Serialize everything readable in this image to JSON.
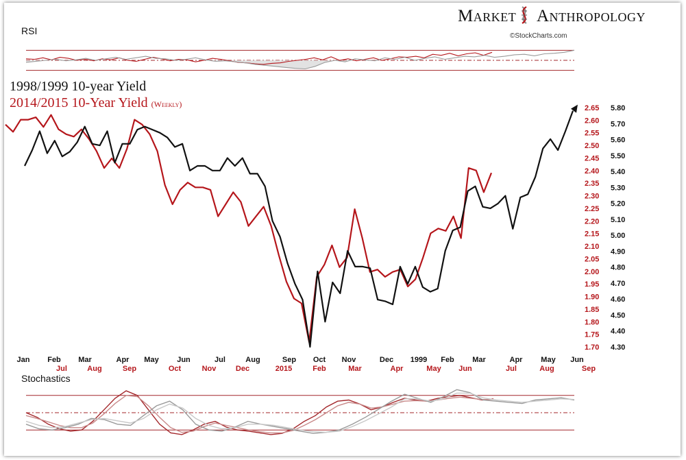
{
  "header": {
    "brand_left": "Market",
    "brand_right": "Anthropology",
    "credit": "©StockCharts.com"
  },
  "colors": {
    "red": "#b5161b",
    "black": "#111111",
    "gray": "#9a9a9a",
    "rule": "#a3262a"
  },
  "chart_data": [
    {
      "type": "line",
      "panel": "RSI",
      "title": "RSI",
      "levels": [
        70,
        50,
        30
      ],
      "series": [
        {
          "color": "#b5161b",
          "values": [
            53,
            52,
            55,
            51,
            56,
            54,
            50,
            52,
            49,
            53,
            51,
            55,
            50,
            48,
            52,
            56,
            53,
            49,
            52,
            51,
            47,
            50,
            54,
            52,
            49,
            46,
            45,
            43,
            42,
            44,
            45,
            48,
            50,
            52,
            55,
            51,
            57,
            50,
            53,
            49,
            52,
            55,
            50,
            53,
            57,
            56,
            58,
            55,
            62,
            60,
            64,
            59,
            63,
            65,
            60,
            66
          ]
        },
        {
          "color": "#9a9a9a",
          "values": [
            46,
            48,
            50,
            52,
            49,
            51,
            54,
            50,
            53,
            56,
            52,
            55,
            58,
            54,
            53,
            50,
            52,
            55,
            51,
            48,
            49,
            47,
            45,
            42,
            40,
            38,
            36,
            34,
            33,
            38,
            46,
            50,
            47,
            53,
            51,
            49,
            55,
            52,
            56,
            50,
            54,
            57,
            52,
            55,
            58,
            57,
            60,
            56,
            58,
            61,
            62,
            59,
            63,
            64,
            66,
            70
          ]
        }
      ]
    },
    {
      "type": "line",
      "panel": "Yield",
      "titles": {
        "black": "1998/1999 10-year Yield",
        "red": "2014/2015  10-Year Yield",
        "red_note": "(Weekly)"
      },
      "x_labels_black": [
        "Jan",
        "Feb",
        "Mar",
        "Apr",
        "May",
        "Jun",
        "Jul",
        "Aug",
        "Sep",
        "Oct",
        "Nov",
        "Dec",
        "1999",
        "Feb",
        "Mar",
        "Apr",
        "May",
        "Jun"
      ],
      "x_labels_red": [
        "Jul",
        "Aug",
        "Sep",
        "Oct",
        "Nov",
        "Dec",
        "2015",
        "Feb",
        "Mar",
        "Apr",
        "May",
        "Jun",
        "Jul",
        "Aug",
        "Sep"
      ],
      "y_ticks_red": [
        "2.65",
        "2.60",
        "2.55",
        "2.50",
        "2.45",
        "2.40",
        "2.35",
        "2.30",
        "2.25",
        "2.20",
        "2.15",
        "2.10",
        "2.05",
        "2.00",
        "1.95",
        "1.90",
        "1.85",
        "1.80",
        "1.75",
        "1.70"
      ],
      "y_ticks_black": [
        "5.80",
        "5.70",
        "5.60",
        "5.50",
        "5.40",
        "5.30",
        "5.20",
        "5.10",
        "5.00",
        "4.90",
        "4.80",
        "4.70",
        "4.60",
        "4.50",
        "4.40",
        "4.30"
      ],
      "ylim_red": [
        1.68,
        2.67
      ],
      "ylim_black": [
        4.3,
        5.82
      ],
      "series": [
        {
          "name": "2014/2015  10-Year Yield",
          "color": "#b5161b",
          "axis": "red",
          "values": [
            2.6,
            2.57,
            2.62,
            2.62,
            2.63,
            2.59,
            2.64,
            2.58,
            2.56,
            2.55,
            2.58,
            2.54,
            2.49,
            2.42,
            2.46,
            2.42,
            2.5,
            2.62,
            2.6,
            2.56,
            2.49,
            2.35,
            2.27,
            2.33,
            2.36,
            2.34,
            2.34,
            2.33,
            2.22,
            2.27,
            2.32,
            2.28,
            2.18,
            2.22,
            2.26,
            2.18,
            2.06,
            1.95,
            1.88,
            1.86,
            1.7,
            1.97,
            2.02,
            2.1,
            2.01,
            2.05,
            2.25,
            2.13,
            1.99,
            2.0,
            1.97,
            1.99,
            2.0,
            1.93,
            1.96,
            2.05,
            2.15,
            2.17,
            2.16,
            2.22,
            2.13,
            2.42,
            2.41,
            2.32,
            2.4
          ]
        },
        {
          "name": "1998/1999 10-year Yield",
          "color": "#111111",
          "axis": "black",
          "values": [
            5.45,
            5.55,
            5.67,
            5.53,
            5.61,
            5.51,
            5.54,
            5.6,
            5.7,
            5.59,
            5.58,
            5.67,
            5.47,
            5.59,
            5.59,
            5.68,
            5.7,
            5.68,
            5.66,
            5.63,
            5.57,
            5.59,
            5.42,
            5.45,
            5.45,
            5.42,
            5.42,
            5.5,
            5.45,
            5.5,
            5.4,
            5.4,
            5.32,
            5.1,
            5.0,
            4.83,
            4.7,
            4.6,
            4.3,
            4.78,
            4.46,
            4.71,
            4.64,
            4.91,
            4.81,
            4.81,
            4.8,
            4.6,
            4.59,
            4.57,
            4.81,
            4.7,
            4.81,
            4.68,
            4.65,
            4.67,
            4.91,
            5.04,
            5.06,
            5.29,
            5.32,
            5.19,
            5.18,
            5.21,
            5.26,
            5.05,
            5.25,
            5.27,
            5.38,
            5.56,
            5.62,
            5.55,
            5.67,
            5.8
          ]
        }
      ]
    },
    {
      "type": "line",
      "panel": "Stochastics",
      "title": "Stochastics",
      "levels": [
        80,
        50,
        20
      ],
      "series": [
        {
          "color": "#a3262a",
          "values": [
            50,
            42,
            30,
            22,
            18,
            20,
            35,
            55,
            75,
            88,
            80,
            55,
            30,
            15,
            12,
            20,
            30,
            35,
            25,
            20,
            18,
            15,
            12,
            14,
            22,
            35,
            45,
            60,
            70,
            72,
            65,
            55,
            60,
            68,
            75,
            72,
            70,
            75,
            78,
            80,
            76,
            72,
            74
          ]
        },
        {
          "color": "#c98a8a",
          "values": [
            45,
            40,
            34,
            28,
            24,
            24,
            32,
            48,
            66,
            80,
            78,
            62,
            42,
            24,
            16,
            18,
            26,
            32,
            28,
            24,
            20,
            17,
            15,
            15,
            19,
            28,
            38,
            50,
            62,
            68,
            65,
            58,
            60,
            65,
            70,
            71,
            70,
            72,
            75,
            77,
            75,
            73,
            73
          ]
        },
        {
          "color": "#9a9a9a",
          "values": [
            30,
            22,
            20,
            24,
            30,
            40,
            38,
            30,
            28,
            45,
            62,
            70,
            55,
            30,
            20,
            18,
            25,
            35,
            30,
            26,
            22,
            18,
            14,
            16,
            20,
            30,
            42,
            56,
            70,
            82,
            75,
            68,
            78,
            90,
            85,
            72,
            70,
            68,
            66,
            72,
            74,
            76,
            72
          ]
        },
        {
          "color": "#c8c8c8",
          "values": [
            35,
            28,
            24,
            26,
            32,
            38,
            40,
            36,
            32,
            40,
            55,
            65,
            58,
            40,
            28,
            22,
            24,
            30,
            30,
            28,
            24,
            20,
            17,
            16,
            18,
            26,
            36,
            48,
            60,
            74,
            74,
            70,
            74,
            84,
            84,
            76,
            72,
            70,
            68,
            70,
            72,
            74,
            73
          ]
        }
      ]
    }
  ]
}
